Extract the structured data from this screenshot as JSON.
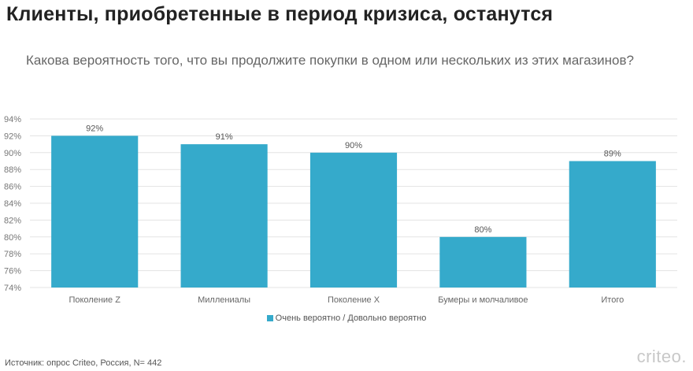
{
  "title": "Клиенты, приобретенные в период кризиса, останутся",
  "subtitle": "Какова вероятность того, что вы продолжите покупки в одном или нескольких из этих магазинов?",
  "source": "Источник: опрос Criteo, Россия, N= 442",
  "logo": "criteo.",
  "chart_data": {
    "type": "bar",
    "categories": [
      "Поколение Z",
      "Миллениалы",
      "Поколение X",
      "Бумеры и молчаливое",
      "Итого"
    ],
    "series": [
      {
        "name": "Очень вероятно / Довольно вероятно",
        "values": [
          92,
          91,
          90,
          80,
          89
        ],
        "color": "#35aacb"
      }
    ],
    "data_labels": [
      "92%",
      "91%",
      "90%",
      "80%",
      "89%"
    ],
    "ylim": [
      74,
      94
    ],
    "yticks": [
      74,
      76,
      78,
      80,
      82,
      84,
      86,
      88,
      90,
      92,
      94
    ],
    "ytick_labels": [
      "74%",
      "76%",
      "78%",
      "80%",
      "82%",
      "84%",
      "86%",
      "88%",
      "90%",
      "92%",
      "94%"
    ],
    "grid": true,
    "legend": "bottom-center",
    "xlabel": "",
    "ylabel": ""
  }
}
